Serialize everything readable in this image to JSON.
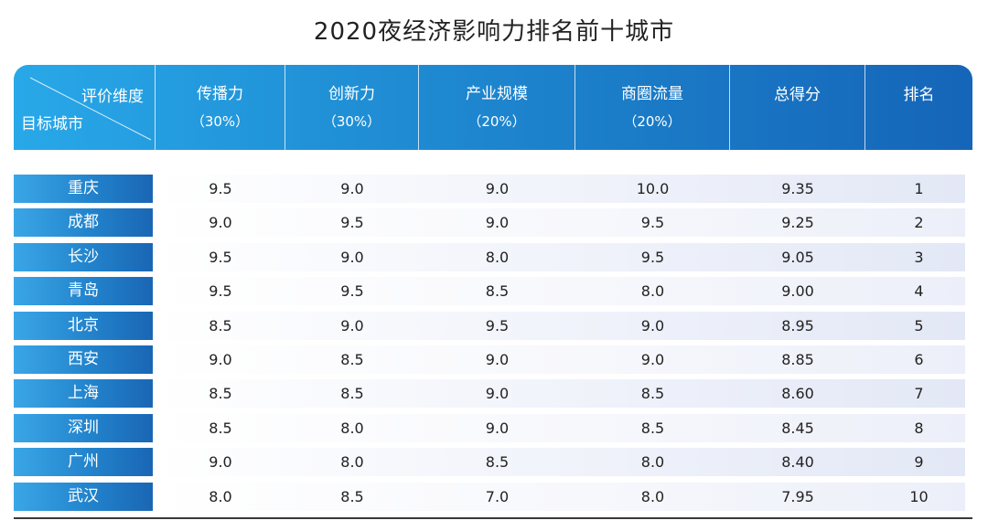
{
  "chart_data": {
    "type": "table",
    "title": "2020夜经济影响力排名前十城市",
    "corner": {
      "top": "评价维度",
      "bottom": "目标城市"
    },
    "columns": [
      {
        "label": "传播力",
        "weight": "（30%）"
      },
      {
        "label": "创新力",
        "weight": "（30%）"
      },
      {
        "label": "产业规模",
        "weight": "（20%）"
      },
      {
        "label": "商圈流量",
        "weight": "（20%）"
      },
      {
        "label": "总得分",
        "weight": ""
      },
      {
        "label": "排名",
        "weight": ""
      }
    ],
    "rows": [
      {
        "city": "重庆",
        "values": [
          "9.5",
          "9.0",
          "9.0",
          "10.0",
          "9.35",
          "1"
        ]
      },
      {
        "city": "成都",
        "values": [
          "9.0",
          "9.5",
          "9.0",
          "9.5",
          "9.25",
          "2"
        ]
      },
      {
        "city": "长沙",
        "values": [
          "9.5",
          "9.0",
          "8.0",
          "9.5",
          "9.05",
          "3"
        ]
      },
      {
        "city": "青岛",
        "values": [
          "9.5",
          "9.5",
          "8.5",
          "8.0",
          "9.00",
          "4"
        ]
      },
      {
        "city": "北京",
        "values": [
          "8.5",
          "9.0",
          "9.5",
          "9.0",
          "8.95",
          "5"
        ]
      },
      {
        "city": "西安",
        "values": [
          "9.0",
          "8.5",
          "9.0",
          "9.0",
          "8.85",
          "6"
        ]
      },
      {
        "city": "上海",
        "values": [
          "8.5",
          "8.5",
          "9.0",
          "8.5",
          "8.60",
          "7"
        ]
      },
      {
        "city": "深圳",
        "values": [
          "8.5",
          "8.0",
          "9.0",
          "8.5",
          "8.45",
          "8"
        ]
      },
      {
        "city": "广州",
        "values": [
          "9.0",
          "8.0",
          "8.5",
          "8.0",
          "8.40",
          "9"
        ]
      },
      {
        "city": "武汉",
        "values": [
          "8.0",
          "8.5",
          "7.0",
          "8.0",
          "7.95",
          "10"
        ]
      }
    ]
  }
}
